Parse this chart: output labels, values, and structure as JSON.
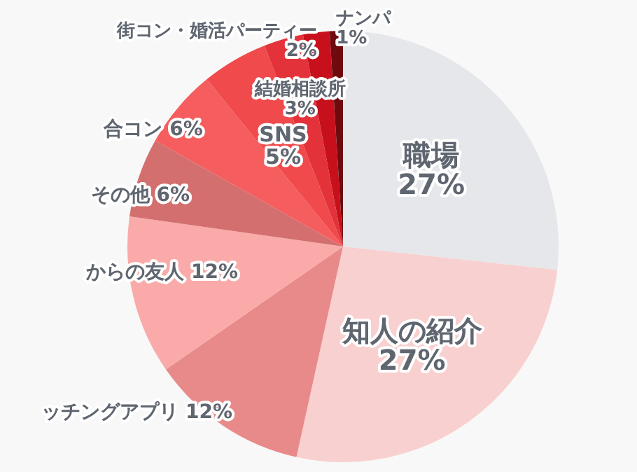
{
  "chart_data": {
    "type": "pie",
    "categories": [
      "職場",
      "知人の紹介",
      "ッチングアプリ",
      "からの友人",
      "その他",
      "合コン",
      "SNS",
      "結婚相談所",
      "街コン・婚活パーティー",
      "ナンパ"
    ],
    "values": [
      27,
      27,
      12,
      12,
      6,
      6,
      5,
      3,
      2,
      1
    ],
    "value_labels": [
      "27%",
      "27%",
      "12%",
      "12%",
      "6%",
      "6%",
      "5%",
      "3%",
      "2%",
      "1%"
    ],
    "colors": [
      "#e5e7ea",
      "#f8d0cf",
      "#e88a8a",
      "#f9aaa9",
      "#d46f6f",
      "#f55d5e",
      "#f04a4c",
      "#e4323a",
      "#c8101d",
      "#6e0a10"
    ]
  }
}
